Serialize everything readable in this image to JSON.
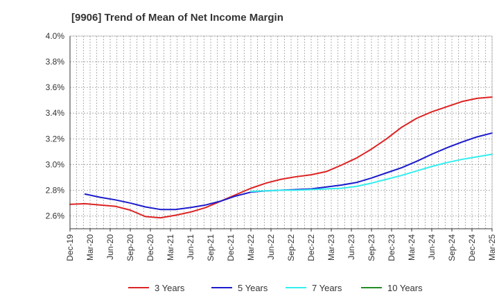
{
  "chart_data": {
    "type": "line",
    "title": "[9906]  Trend of Mean of Net Income Margin",
    "xlabel": "",
    "ylabel": "",
    "x_ticks": [
      "Dec-19",
      "Mar-20",
      "Jun-20",
      "Sep-20",
      "Dec-20",
      "Mar-21",
      "Jun-21",
      "Sep-21",
      "Dec-21",
      "Mar-22",
      "Jun-22",
      "Sep-22",
      "Dec-22",
      "Mar-23",
      "Jun-23",
      "Sep-23",
      "Dec-23",
      "Mar-24",
      "Jun-24",
      "Sep-24",
      "Dec-24",
      "Mar-25"
    ],
    "y_ticks": [
      "2.6%",
      "2.8%",
      "3.0%",
      "3.2%",
      "3.4%",
      "3.6%",
      "3.8%",
      "4.0%"
    ],
    "ylim": [
      2.5,
      4.0
    ],
    "grid": true,
    "legend_position": "bottom",
    "series": [
      {
        "name": "3 Years",
        "color": "#dd2222",
        "values": [
          2.69,
          2.695,
          2.685,
          2.675,
          2.645,
          2.595,
          2.585,
          2.605,
          2.63,
          2.665,
          2.715,
          2.765,
          2.815,
          2.855,
          2.885,
          2.905,
          2.92,
          2.945,
          2.995,
          3.05,
          3.12,
          3.2,
          3.29,
          3.36,
          3.41,
          3.45,
          3.49,
          3.515,
          3.525
        ]
      },
      {
        "name": "5 Years",
        "color": "#1a1acc",
        "values": [
          null,
          2.77,
          2.745,
          2.725,
          2.7,
          2.67,
          2.65,
          2.65,
          2.665,
          2.685,
          2.715,
          2.755,
          2.785,
          2.795,
          2.8,
          2.805,
          2.81,
          2.825,
          2.84,
          2.86,
          2.895,
          2.935,
          2.975,
          3.025,
          3.08,
          3.13,
          3.175,
          3.215,
          3.245
        ]
      },
      {
        "name": "7 Years",
        "color": "#33eeee",
        "values": [
          null,
          null,
          null,
          null,
          null,
          null,
          null,
          null,
          null,
          null,
          null,
          null,
          2.79,
          2.795,
          2.8,
          2.8,
          2.805,
          2.81,
          2.815,
          2.83,
          2.855,
          2.885,
          2.915,
          2.95,
          2.985,
          3.015,
          3.04,
          3.06,
          3.08
        ]
      },
      {
        "name": "10 Years",
        "color": "#228b22",
        "values": []
      }
    ]
  }
}
